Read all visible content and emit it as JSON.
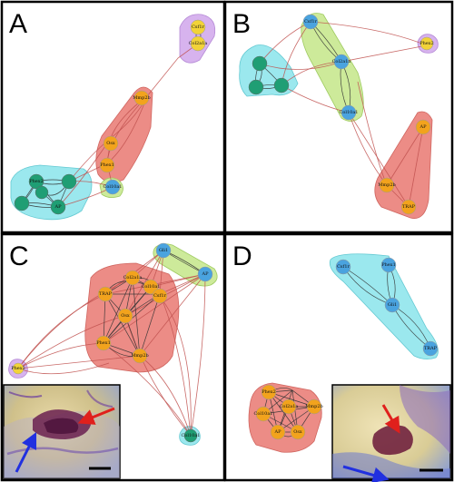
{
  "panels": [
    {
      "letter": "A",
      "nodes": [
        {
          "id": "a_csf1r",
          "label": "Csf1r",
          "color": "#f2d338"
        },
        {
          "id": "a_col2a1a",
          "label": "Col2a1a",
          "color": "#f2d338"
        },
        {
          "id": "a_mmp2",
          "label": "Mmp2b",
          "color": "#f2a31d"
        },
        {
          "id": "a_osx",
          "label": "Osx",
          "color": "#f2a31d"
        },
        {
          "id": "a_phex1",
          "label": "Phex1",
          "color": "#f2a31d"
        },
        {
          "id": "a_col10a1",
          "label": "Col10a1",
          "color": "#4aa3df"
        },
        {
          "id": "a_t1",
          "label": "",
          "color": "#1f9e74"
        },
        {
          "id": "a_t2",
          "label": "Phex2",
          "color": "#1f9e74"
        },
        {
          "id": "a_t3",
          "label": "",
          "color": "#1f9e74"
        },
        {
          "id": "a_t4",
          "label": "",
          "color": "#1f9e74"
        },
        {
          "id": "a_ap",
          "label": "AP",
          "color": "#1f9e74"
        }
      ]
    },
    {
      "letter": "B",
      "nodes": [
        {
          "id": "b_csf1r",
          "label": "Csf1r",
          "color": "#4aa3df"
        },
        {
          "id": "b_col2a1a",
          "label": "Col2a1a",
          "color": "#4aa3df"
        },
        {
          "id": "b_col10a1",
          "label": "Col10a1",
          "color": "#4aa3df"
        },
        {
          "id": "b_phex2",
          "label": "Phex2",
          "color": "#f2d338"
        },
        {
          "id": "b_t1",
          "label": "",
          "color": "#1f9e74"
        },
        {
          "id": "b_t2",
          "label": "",
          "color": "#1f9e74"
        },
        {
          "id": "b_t3",
          "label": "",
          "color": "#1f9e74"
        },
        {
          "id": "b_ap",
          "label": "AP",
          "color": "#f2a31d"
        },
        {
          "id": "b_mmp2",
          "label": "Mmp2b",
          "color": "#f2a31d"
        },
        {
          "id": "b_trap",
          "label": "TRAP",
          "color": "#f2a31d"
        }
      ]
    },
    {
      "letter": "C",
      "nodes": [
        {
          "id": "c_gli1",
          "label": "Gli1",
          "color": "#4aa3df"
        },
        {
          "id": "c_ap",
          "label": "AP",
          "color": "#4aa3df"
        },
        {
          "id": "c_col2a1a",
          "label": "Col2a1a",
          "color": "#f2a31d"
        },
        {
          "id": "c_trap",
          "label": "TRAP",
          "color": "#f2a31d"
        },
        {
          "id": "c_col10a1",
          "label": "Col10a1",
          "color": "#f2a31d"
        },
        {
          "id": "c_csf1r",
          "label": "Csf1r",
          "color": "#f2a31d"
        },
        {
          "id": "c_osx",
          "label": "Osx",
          "color": "#f2a31d"
        },
        {
          "id": "c_phex1",
          "label": "Phex1",
          "color": "#f2a31d"
        },
        {
          "id": "c_mmp2",
          "label": "Mmp2b",
          "color": "#f2a31d"
        },
        {
          "id": "c_phex2",
          "label": "Phex2",
          "color": "#f2d338"
        },
        {
          "id": "c_col10b",
          "label": "Col10a1",
          "color": "#1f9e74"
        }
      ]
    },
    {
      "letter": "D",
      "nodes": [
        {
          "id": "d_csf1r",
          "label": "Csf1r",
          "color": "#4aa3df"
        },
        {
          "id": "d_phex1",
          "label": "Phex1",
          "color": "#4aa3df"
        },
        {
          "id": "d_gli1",
          "label": "Gli1",
          "color": "#4aa3df"
        },
        {
          "id": "d_trap",
          "label": "TRAP",
          "color": "#4aa3df"
        },
        {
          "id": "d_phex2",
          "label": "Phex2",
          "color": "#f2a31d"
        },
        {
          "id": "d_col10a1",
          "label": "Col10a1",
          "color": "#f2a31d"
        },
        {
          "id": "d_col2a1a",
          "label": "Col2a1a",
          "color": "#f2a31d"
        },
        {
          "id": "d_mmp2",
          "label": "Mmp2b",
          "color": "#f2a31d"
        },
        {
          "id": "d_ap",
          "label": "AP",
          "color": "#f2a31d"
        },
        {
          "id": "d_osx",
          "label": "Osx",
          "color": "#f2a31d"
        }
      ]
    }
  ],
  "colors": {
    "hull_red": "#ec8c86",
    "hull_cyan": "#9be8ee",
    "hull_green": "#cdea9a",
    "hull_purple": "#d7b3ee",
    "node_teal": "#1f9e74",
    "node_blue": "#4aa3df",
    "node_orange": "#f2a31d",
    "node_yellow": "#f2d338",
    "edge_red": "#c0504d",
    "border": "#000000"
  },
  "icons": {
    "inset_c": "tissue-photo-icon",
    "inset_d": "tissue-photo-icon",
    "arrow_red": "red-arrow-icon",
    "arrow_blue": "blue-arrow-icon"
  }
}
